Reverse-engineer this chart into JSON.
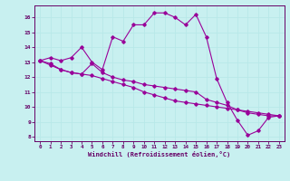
{
  "xlabel": "Windchill (Refroidissement éolien,°C)",
  "bg_color": "#c8f0f0",
  "line_color": "#990099",
  "grid_color": "#b8e8e8",
  "axis_color": "#660066",
  "xlim": [
    -0.5,
    23.5
  ],
  "ylim": [
    7.7,
    16.8
  ],
  "yticks": [
    8,
    9,
    10,
    11,
    12,
    13,
    14,
    15,
    16
  ],
  "xticks": [
    0,
    1,
    2,
    3,
    4,
    5,
    6,
    7,
    8,
    9,
    10,
    11,
    12,
    13,
    14,
    15,
    16,
    17,
    18,
    19,
    20,
    21,
    22,
    23
  ],
  "series": [
    {
      "x": [
        0,
        1,
        2,
        3,
        4,
        5,
        6,
        7,
        8,
        9,
        10,
        11,
        12,
        13,
        14,
        15,
        16,
        17,
        18,
        19,
        20,
        21,
        22,
        23
      ],
      "y": [
        13.1,
        13.3,
        13.1,
        13.3,
        14.0,
        13.0,
        12.5,
        14.7,
        14.4,
        15.5,
        15.5,
        16.3,
        16.3,
        16.0,
        15.5,
        16.2,
        14.7,
        11.9,
        10.3,
        9.1,
        8.1,
        8.4,
        9.3,
        9.4
      ]
    },
    {
      "x": [
        0,
        1,
        2,
        3,
        4,
        5,
        6,
        7,
        8,
        9,
        10,
        11,
        12,
        13,
        14,
        15,
        16,
        17,
        18,
        19,
        20,
        21,
        22,
        23
      ],
      "y": [
        13.1,
        12.9,
        12.5,
        12.3,
        12.2,
        12.9,
        12.3,
        12.0,
        11.8,
        11.7,
        11.5,
        11.4,
        11.3,
        11.2,
        11.1,
        11.0,
        10.5,
        10.3,
        10.1,
        9.8,
        9.6,
        9.5,
        9.4,
        9.4
      ]
    },
    {
      "x": [
        0,
        1,
        2,
        3,
        4,
        5,
        6,
        7,
        8,
        9,
        10,
        11,
        12,
        13,
        14,
        15,
        16,
        17,
        18,
        19,
        20,
        21,
        22,
        23
      ],
      "y": [
        13.1,
        12.8,
        12.5,
        12.3,
        12.2,
        12.1,
        11.9,
        11.7,
        11.5,
        11.3,
        11.0,
        10.8,
        10.6,
        10.4,
        10.3,
        10.2,
        10.1,
        10.0,
        9.9,
        9.8,
        9.7,
        9.6,
        9.5,
        9.4
      ]
    }
  ]
}
